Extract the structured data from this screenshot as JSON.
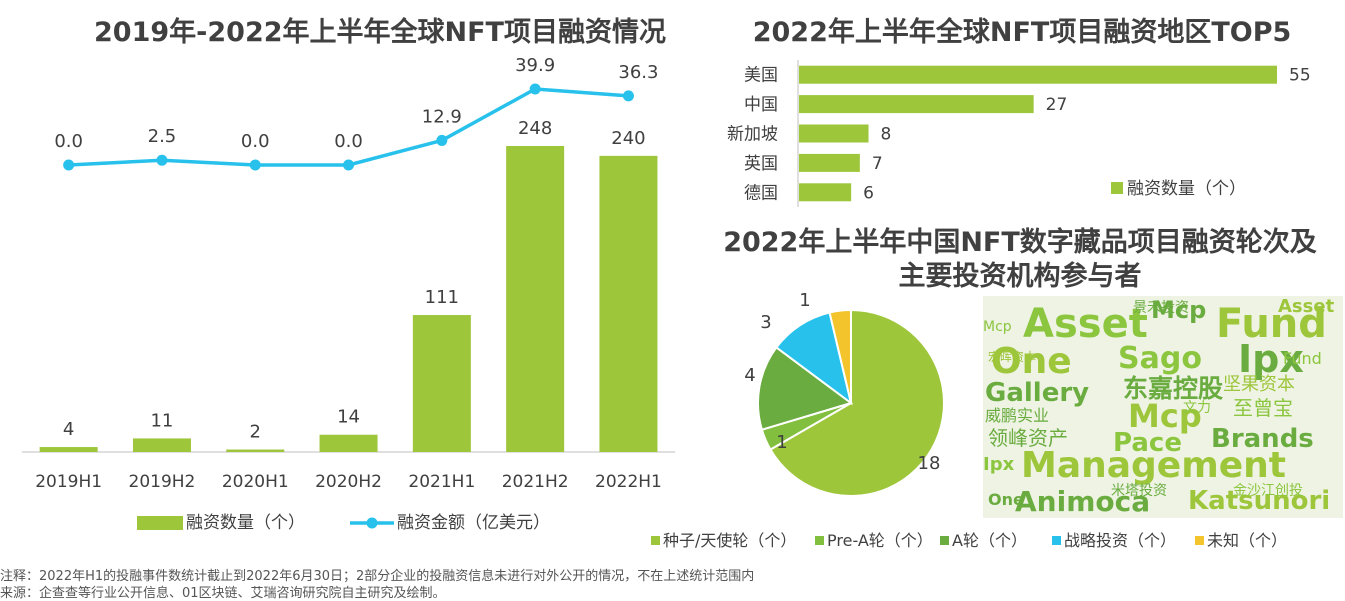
{
  "colors": {
    "green": "#9dc63b",
    "cyan": "#27c1ec",
    "darkgreen": "#6aac3f",
    "midgreen": "#83bf3e",
    "yellow": "#f3c42b",
    "wcbg": "#eef3e3"
  },
  "left_chart_title": "2019年-2022年上半年全球NFT项目融资情况",
  "right_top_title": "2022年上半年全球NFT项目融资地区TOP5",
  "pie_title_line1": "2022年上半年中国NFT数字藏品项目融资轮次及",
  "pie_title_line2": "主要投资机构参与者",
  "chart_data": [
    {
      "type": "bar+line",
      "title": "2019年-2022年上半年全球NFT项目融资情况",
      "categories": [
        "2019H1",
        "2019H2",
        "2020H1",
        "2020H2",
        "2021H1",
        "2021H2",
        "2022H1"
      ],
      "series": [
        {
          "name": "融资数量（个）",
          "type": "bar",
          "values": [
            4,
            11,
            2,
            14,
            111,
            248,
            240
          ],
          "labels": [
            "4",
            "11",
            "2",
            "14",
            "111",
            "248",
            "240"
          ]
        },
        {
          "name": "融资金额（亿美元）",
          "type": "line",
          "values": [
            0.0,
            2.5,
            0.0,
            0.0,
            12.9,
            39.9,
            36.3
          ],
          "labels": [
            "0.0",
            "2.5",
            "0.0",
            "0.0",
            "12.9",
            "39.9",
            "36.3"
          ]
        }
      ],
      "legend": [
        "融资数量（个）",
        "融资金额（亿美元）"
      ],
      "legend_position": "bottom"
    },
    {
      "type": "bar",
      "orientation": "horizontal",
      "title": "2022年上半年全球NFT项目融资地区TOP5",
      "categories": [
        "美国",
        "中国",
        "新加坡",
        "英国",
        "德国"
      ],
      "values": [
        55,
        27,
        8,
        7,
        6
      ],
      "value_labels": [
        "55",
        "27",
        "8",
        "7",
        "6"
      ],
      "legend": [
        "融资数量（个）"
      ],
      "legend_position": "bottom-right"
    },
    {
      "type": "pie",
      "title": "2022年上半年中国NFT数字藏品项目融资轮次及主要投资机构参与者",
      "slices": [
        {
          "label": "种子/天使轮（个）",
          "value": 18,
          "value_label": "18"
        },
        {
          "label": "Pre-A轮（个）",
          "value": 1,
          "value_label": "1"
        },
        {
          "label": "A轮（个）",
          "value": 4,
          "value_label": "4"
        },
        {
          "label": "战略投资（个）",
          "value": 3,
          "value_label": "3"
        },
        {
          "label": "未知（个）",
          "value": 1,
          "value_label": "1"
        }
      ],
      "legend_position": "bottom"
    }
  ],
  "wordcloud_words": [
    "Management",
    "Asset",
    "Fund",
    "One",
    "Ipx",
    "Sago",
    "Mcp",
    "Gallery",
    "Pace",
    "Brands",
    "Animoca",
    "Katsunori",
    "东嘉控股",
    "坚果资本",
    "至曾宝",
    "威鹏实业",
    "领峰资产",
    "景禾投资",
    "宏晖资本",
    "文力",
    "米塔投资",
    "金沙江创投"
  ],
  "notes": {
    "line1": "注释：2022年H1的投融事件数统计截止到2022年6月30日；2部分企业的投融资信息未进行对外公开的情况，不在上述统计范围内",
    "line2": "来源：企查查等行业公开信息、01区块链、艾瑞咨询研究院自主研究及绘制。"
  }
}
